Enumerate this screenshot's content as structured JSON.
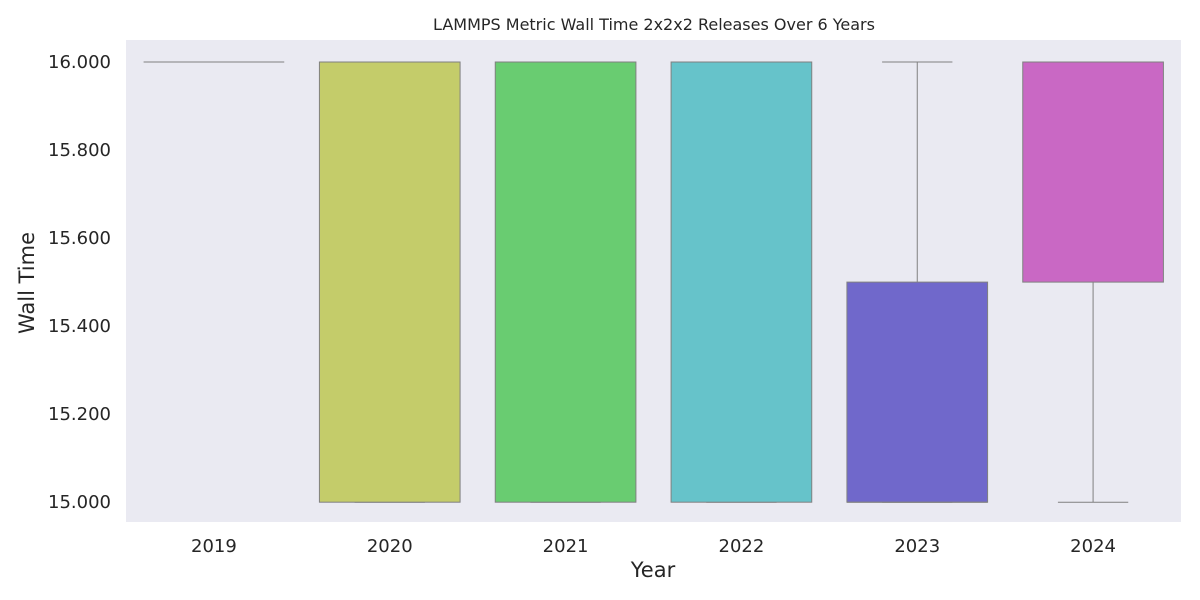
{
  "chart_data": {
    "type": "box",
    "title": "LAMMPS Metric Wall Time 2x2x2 Releases Over 6 Years",
    "xlabel": "Year",
    "ylabel": "Wall Time",
    "ylim": [
      14.955,
      16.05
    ],
    "yticks": [
      "15.000",
      "15.200",
      "15.400",
      "15.600",
      "15.800",
      "16.000"
    ],
    "ytick_values": [
      15.0,
      15.2,
      15.4,
      15.6,
      15.8,
      16.0
    ],
    "grid": false,
    "categories": [
      "2019",
      "2020",
      "2021",
      "2022",
      "2023",
      "2024"
    ],
    "boxes": [
      {
        "category": "2019",
        "whisker_low": 16.0,
        "q1": 16.0,
        "median": 16.0,
        "q3": 16.0,
        "whisker_high": 16.0,
        "color": "#d7554e"
      },
      {
        "category": "2020",
        "whisker_low": 15.0,
        "q1": 15.0,
        "median": 16.0,
        "q3": 16.0,
        "whisker_high": 16.0,
        "color": "#c4cc6a"
      },
      {
        "category": "2021",
        "whisker_low": 15.0,
        "q1": 15.0,
        "median": 16.0,
        "q3": 16.0,
        "whisker_high": 16.0,
        "color": "#69cc71"
      },
      {
        "category": "2022",
        "whisker_low": 15.0,
        "q1": 15.0,
        "median": 16.0,
        "q3": 16.0,
        "whisker_high": 16.0,
        "color": "#66c3ca"
      },
      {
        "category": "2023",
        "whisker_low": 15.0,
        "q1": 15.0,
        "median": 15.0,
        "q3": 15.5,
        "whisker_high": 16.0,
        "color": "#7068cb"
      },
      {
        "category": "2024",
        "whisker_low": 15.0,
        "q1": 15.5,
        "median": 16.0,
        "q3": 16.0,
        "whisker_high": 16.0,
        "color": "#c968c4"
      }
    ],
    "background_color": "#eaeaf2",
    "line_color": "#808080"
  }
}
